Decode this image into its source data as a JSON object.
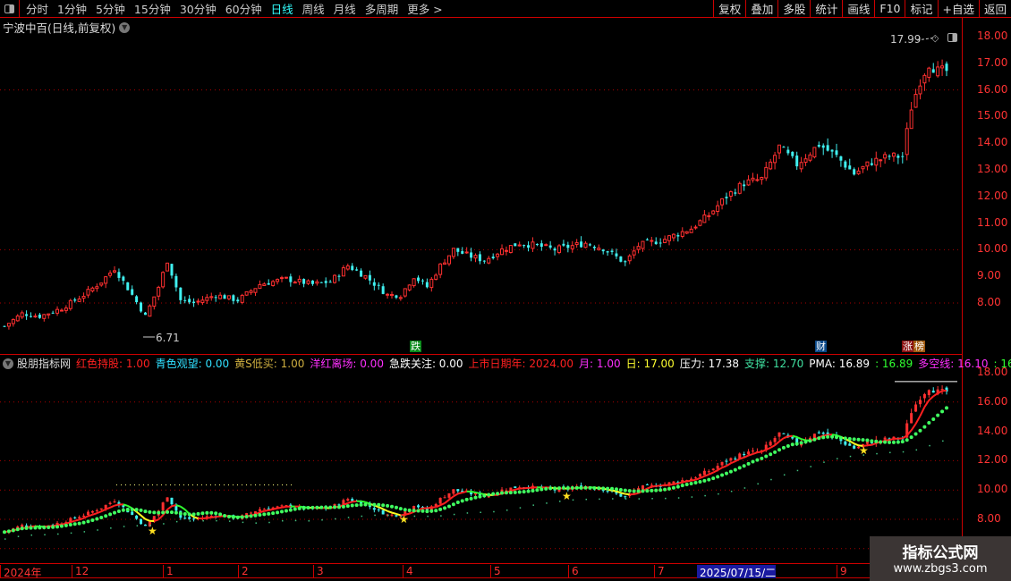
{
  "toolbar": {
    "periods": [
      "分时",
      "1分钟",
      "5分钟",
      "15分钟",
      "30分钟",
      "60分钟",
      "日线",
      "周线",
      "月线",
      "多周期",
      "更多 >"
    ],
    "active_period": "日线",
    "buttons": [
      "复权",
      "叠加",
      "多股",
      "统计",
      "画线",
      "F10",
      "标记",
      "+自选",
      "返回"
    ]
  },
  "main_chart": {
    "title": "宁波中百(日线,前复权)",
    "y_labels": [
      "18.00",
      "17.00",
      "16.00",
      "15.00",
      "14.00",
      "13.00",
      "12.00",
      "11.00",
      "10.00",
      "9.00",
      "8.00"
    ],
    "high_label": "17.99",
    "low_label": "6.71",
    "markers": [
      {
        "text": "跌",
        "color": "#0a8a1a"
      },
      {
        "text": "财",
        "color": "#0b4a8a"
      },
      {
        "text": "涨",
        "color": "#8a1010"
      },
      {
        "text": "榜",
        "color": "#a05a10"
      }
    ]
  },
  "indicator": {
    "name": "股朋指标网",
    "items": [
      {
        "label": "红色持股: 1.00",
        "color": "#ff2020"
      },
      {
        "label": "青色观望: 0.00",
        "color": "#30e0ff"
      },
      {
        "label": "黄S低买: 1.00",
        "color": "#d0b040"
      },
      {
        "label": "洋红离场: 0.00",
        "color": "#ff30ff"
      },
      {
        "label": "急跌关注: 0.00",
        "color": "#ffffff"
      },
      {
        "label": "上市日期年: 2024.00",
        "color": "#ff2020"
      },
      {
        "label": "月: 1.00",
        "color": "#ff30ff"
      },
      {
        "label": "日: 17.00",
        "color": "#ffff30"
      },
      {
        "label": "压力: 17.38",
        "color": "#ffffff"
      },
      {
        "label": "支撑: 12.70",
        "color": "#40e0a0"
      },
      {
        "label": "PMA: 16.89",
        "color": "#ffffff"
      },
      {
        "label": ": 16.89",
        "color": "#30ff30"
      },
      {
        "label": "多空线: 16.10",
        "color": "#ff30ff"
      },
      {
        "label": ": 16.10",
        "color": "#30ff30"
      }
    ],
    "y_labels": [
      "18.00",
      "16.00",
      "14.00",
      "12.00",
      "10.00",
      "8.00"
    ]
  },
  "x_axis": {
    "labels": [
      "2024年",
      "12",
      "1",
      "2",
      "3",
      "4",
      "5",
      "6",
      "7",
      "2025/07/15/二",
      "9"
    ],
    "highlighted": "2025/07/15/二"
  },
  "watermark": {
    "line1": "指标公式网",
    "line2": "www.zbgs3.com"
  },
  "colors": {
    "up": "#ff3030",
    "down": "#40f0f0",
    "grid": "#c00000"
  },
  "chart_data": {
    "type": "candlestick",
    "candle_count": 215,
    "close_keypoints": [
      [
        0,
        7.13
      ],
      [
        4,
        7.6
      ],
      [
        8,
        7.5
      ],
      [
        13,
        7.8
      ],
      [
        18,
        8.3
      ],
      [
        22,
        8.8
      ],
      [
        25,
        9.3
      ],
      [
        29,
        8.3
      ],
      [
        32,
        7.5
      ],
      [
        35,
        8.6
      ],
      [
        37,
        9.6
      ],
      [
        40,
        8.1
      ],
      [
        43,
        8.0
      ],
      [
        48,
        8.3
      ],
      [
        53,
        8.1
      ],
      [
        58,
        8.7
      ],
      [
        64,
        8.9
      ],
      [
        70,
        8.7
      ],
      [
        74,
        8.8
      ],
      [
        78,
        9.4
      ],
      [
        82,
        9.0
      ],
      [
        87,
        8.3
      ],
      [
        90,
        8.3
      ],
      [
        93,
        9.0
      ],
      [
        96,
        8.6
      ],
      [
        99,
        9.4
      ],
      [
        102,
        10.0
      ],
      [
        105,
        9.8
      ],
      [
        109,
        9.6
      ],
      [
        113,
        10.0
      ],
      [
        117,
        10.25
      ],
      [
        121,
        10.15
      ],
      [
        125,
        10.0
      ],
      [
        132,
        10.25
      ],
      [
        136,
        10.05
      ],
      [
        141,
        9.5
      ],
      [
        144,
        10.15
      ],
      [
        150,
        10.4
      ],
      [
        156,
        10.8
      ],
      [
        160,
        11.3
      ],
      [
        164,
        12.0
      ],
      [
        168,
        12.5
      ],
      [
        172,
        12.65
      ],
      [
        176,
        13.85
      ],
      [
        180,
        13.2
      ],
      [
        185,
        13.95
      ],
      [
        189,
        13.5
      ],
      [
        193,
        12.85
      ],
      [
        197,
        13.3
      ],
      [
        201,
        13.5
      ],
      [
        204,
        13.5
      ],
      [
        206,
        15.35
      ],
      [
        208,
        16.35
      ],
      [
        210,
        17.0
      ],
      [
        212,
        16.7
      ],
      [
        214,
        16.7
      ]
    ],
    "high": 17.99,
    "low": 6.71,
    "ylim_main": [
      8,
      18
    ],
    "ylim_indicator": [
      8,
      18
    ]
  }
}
